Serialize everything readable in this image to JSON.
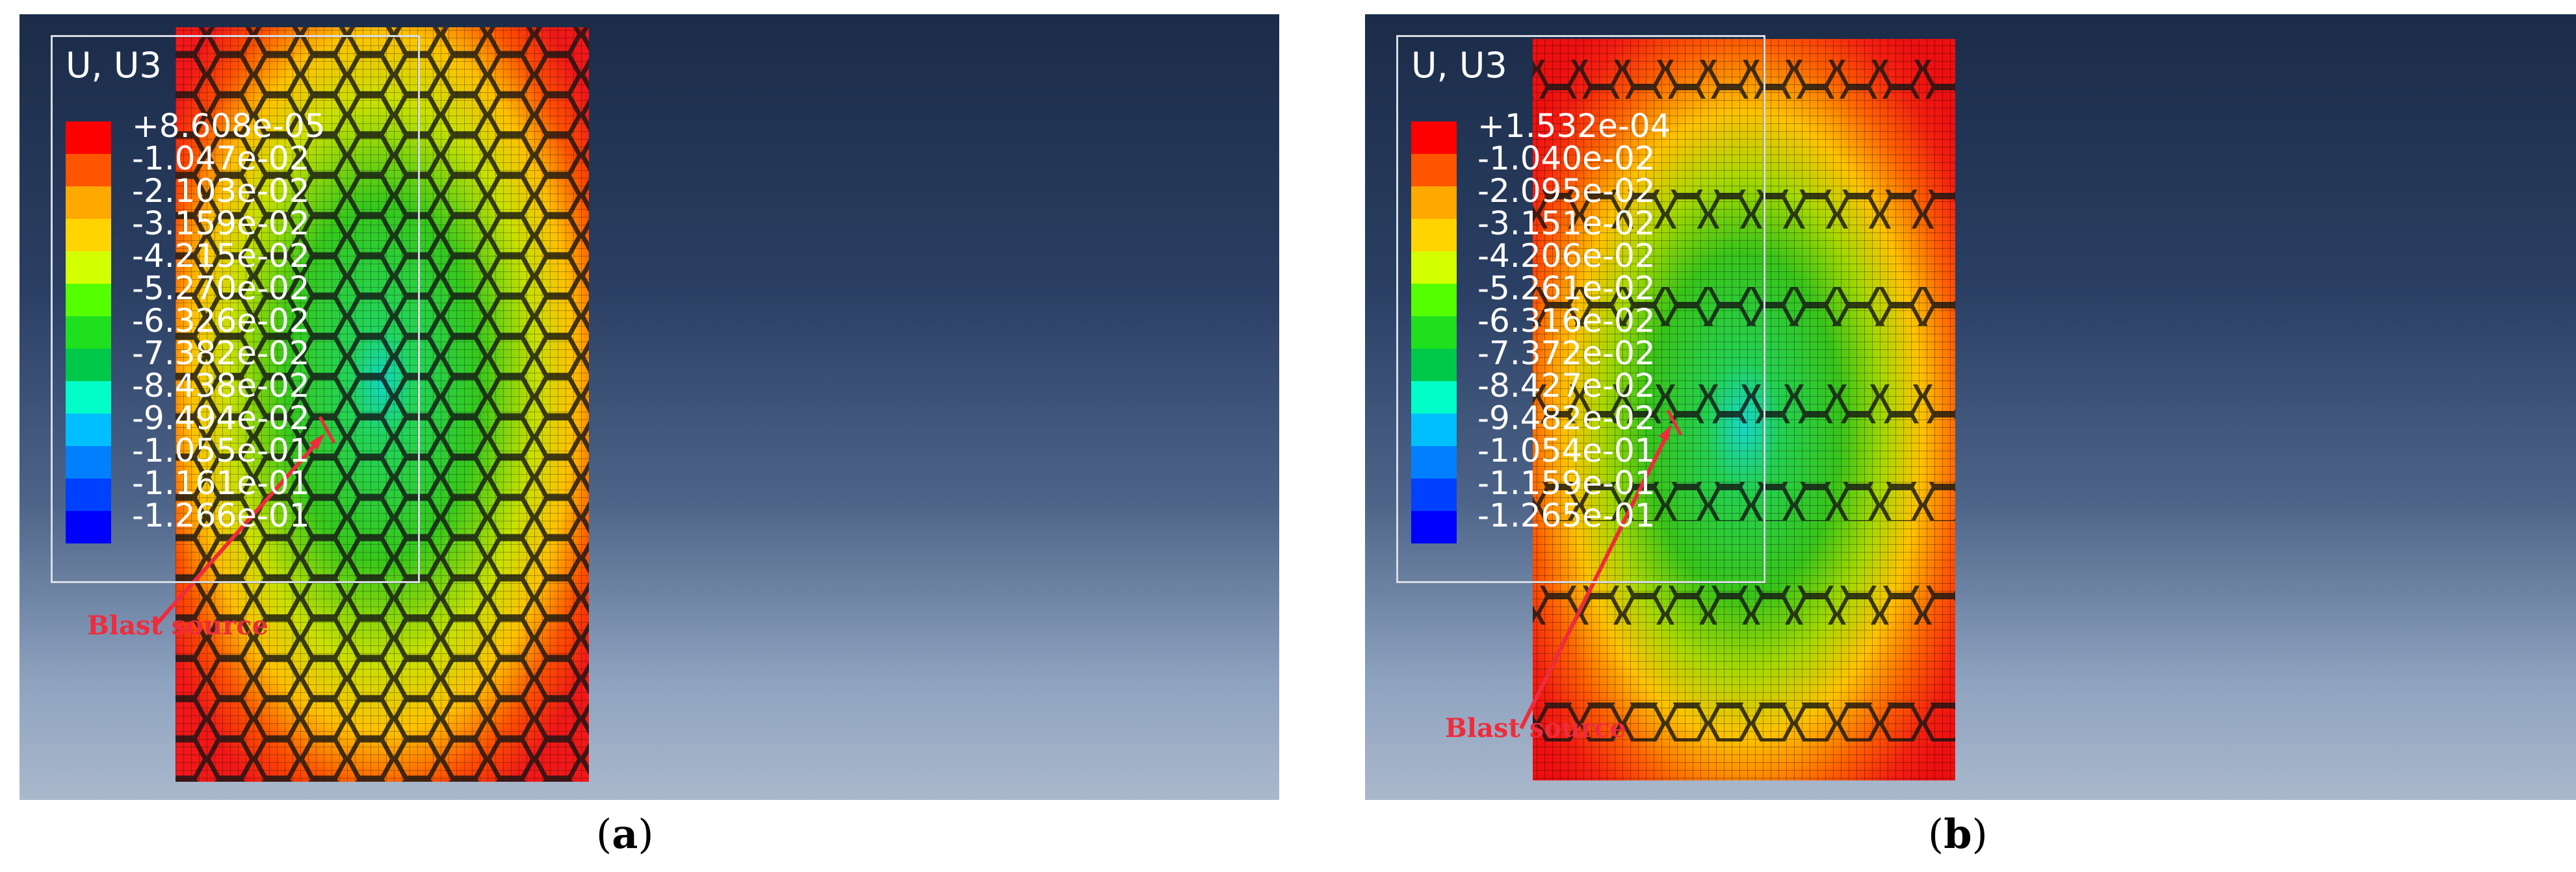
{
  "panels": [
    {
      "caption_letter": "a",
      "legend_title": "U, U3",
      "legend_values": [
        "+8.608e-05",
        "-1.047e-02",
        "-2.103e-02",
        "-3.159e-02",
        "-4.215e-02",
        "-5.270e-02",
        "-6.326e-02",
        "-7.382e-02",
        "-8.438e-02",
        "-9.494e-02",
        "-1.055e-01",
        "-1.161e-01",
        "-1.266e-01"
      ],
      "annotation": "Blast source"
    },
    {
      "caption_letter": "b",
      "legend_title": "U, U3",
      "legend_values": [
        "+1.532e-04",
        "-1.040e-02",
        "-2.095e-02",
        "-3.151e-02",
        "-4.206e-02",
        "-5.261e-02",
        "-6.316e-02",
        "-7.372e-02",
        "-8.427e-02",
        "-9.482e-02",
        "-1.054e-01",
        "-1.159e-01",
        "-1.265e-01"
      ],
      "annotation": "Blast source"
    }
  ],
  "legend_colors": [
    "#ff0000",
    "#ff5400",
    "#ffa800",
    "#ffd400",
    "#d4ff00",
    "#55ff00",
    "#1fe01f",
    "#00c848",
    "#00ffc8",
    "#00bfff",
    "#0080ff",
    "#0040ff",
    "#0000ff"
  ],
  "caption_open": "(",
  "caption_close": ")"
}
